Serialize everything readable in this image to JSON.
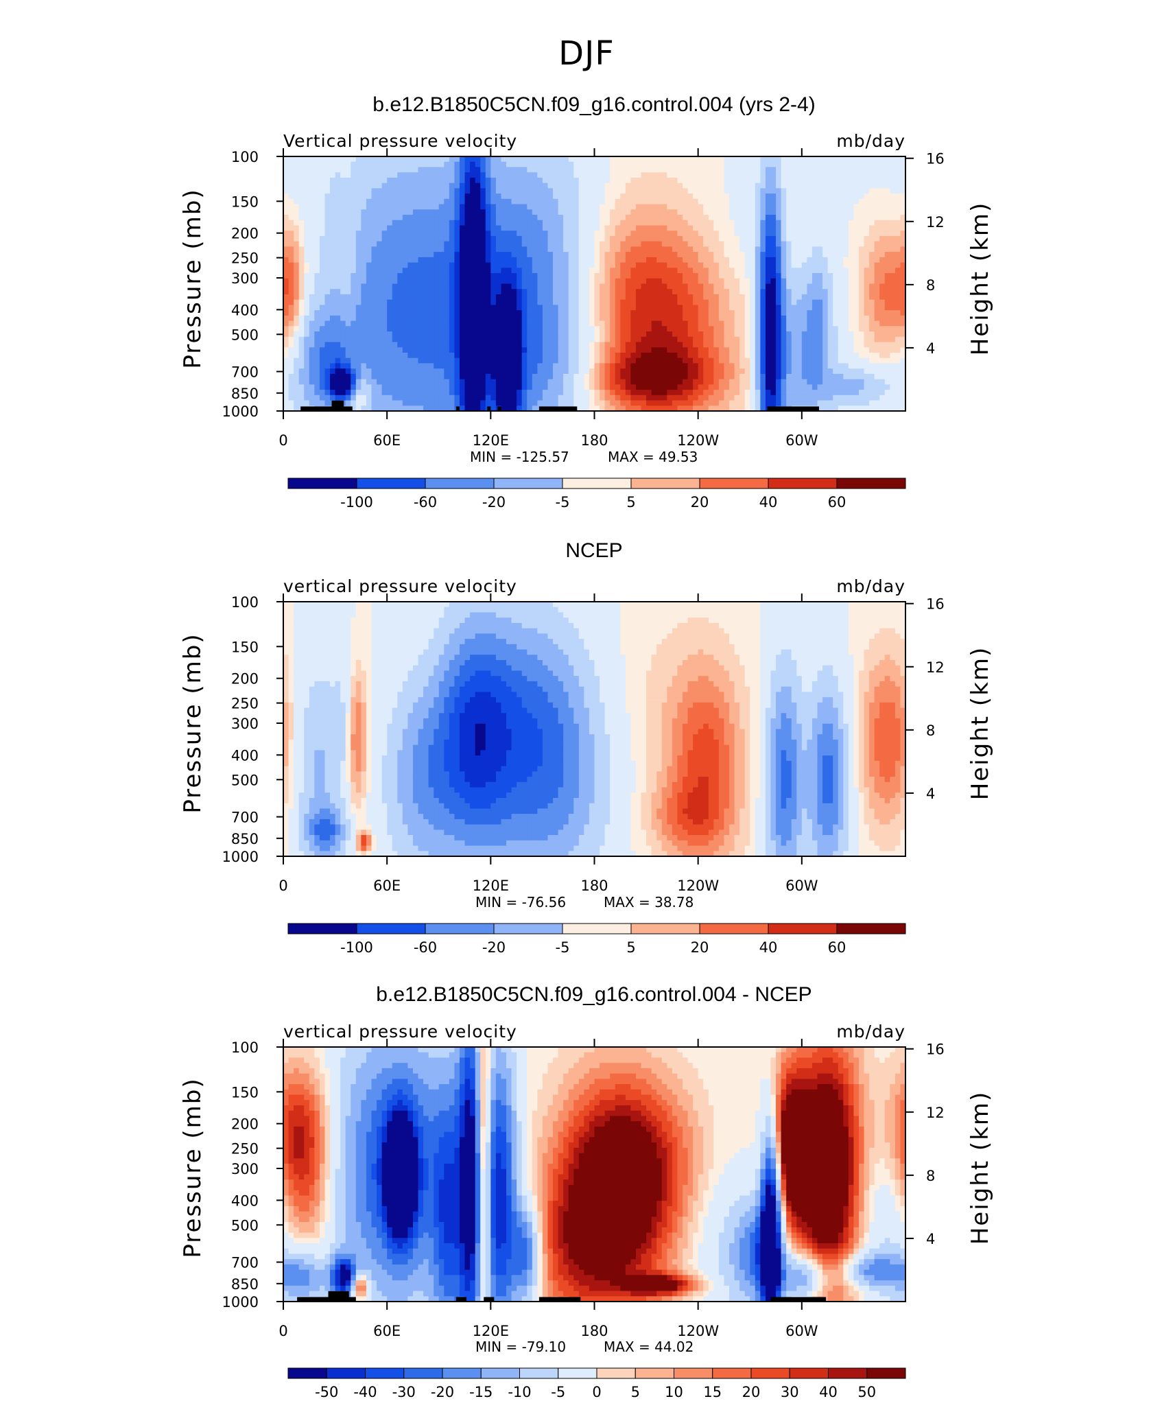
{
  "page": {
    "title": "DJF"
  },
  "colors": {
    "neg": [
      "#08088f",
      "#0a2fd0",
      "#1450e8",
      "#2e6be8",
      "#5b8ff0",
      "#8fb4f7",
      "#bcd6fb",
      "#deecfc"
    ],
    "pos": [
      "#fdeee2",
      "#fcd3bb",
      "#fbb392",
      "#f78e68",
      "#f46a43",
      "#ea4a25",
      "#d12d17",
      "#a81510",
      "#7a0606"
    ],
    "topography": "#000000"
  },
  "chart_data": [
    {
      "type": "heatmap",
      "title": "b.e12.B1850C5CN.f09_g16.control.004 (yrs 2-4)",
      "left_label": "Vertical pressure velocity",
      "right_label": "mb/day",
      "ylabel": "Pressure (mb)",
      "ylabel_right": "Height (km)",
      "x_ticks": [
        "0",
        "60E",
        "120E",
        "180",
        "120W",
        "60W"
      ],
      "x_tick_values": [
        0,
        60,
        120,
        180,
        240,
        300
      ],
      "xlim": [
        0,
        360
      ],
      "y_ticks": [
        "100",
        "150",
        "200",
        "250",
        "300",
        "400",
        "500",
        "700",
        "850",
        "1000"
      ],
      "y_tick_values": [
        100,
        150,
        200,
        250,
        300,
        400,
        500,
        700,
        850,
        1000
      ],
      "ylim": [
        100,
        1000
      ],
      "y_right_ticks": [
        "4",
        "8",
        "12",
        "16"
      ],
      "y_right_tick_values": [
        4,
        8,
        12,
        16
      ],
      "min_text": "MIN = -125.57",
      "max_text": "MAX = 49.53",
      "colorbar_labels": [
        "-100",
        "-60",
        "-20",
        "-5",
        "5",
        "20",
        "40",
        "60"
      ],
      "blobs": [
        {
          "lon": 5,
          "p": 350,
          "lw": 6,
          "pw": 160,
          "v": 25
        },
        {
          "lon": 20,
          "p": 250,
          "lw": 18,
          "pw": 100,
          "v": 8
        },
        {
          "lon": 25,
          "p": 650,
          "lw": 14,
          "pw": 200,
          "v": -35
        },
        {
          "lon": 35,
          "p": 780,
          "lw": 6,
          "pw": 80,
          "v": -100
        },
        {
          "lon": 43,
          "p": 820,
          "lw": 5,
          "pw": 120,
          "v": 50
        },
        {
          "lon": 38,
          "p": 300,
          "lw": 4,
          "pw": 200,
          "v": 10
        },
        {
          "lon": 80,
          "p": 400,
          "lw": 45,
          "pw": 400,
          "v": -60
        },
        {
          "lon": 110,
          "p": 350,
          "lw": 6,
          "pw": 400,
          "v": -100
        },
        {
          "lon": 130,
          "p": 650,
          "lw": 5,
          "pw": 300,
          "v": -120
        },
        {
          "lon": 145,
          "p": 400,
          "lw": 25,
          "pw": 350,
          "v": -40
        },
        {
          "lon": 160,
          "p": 700,
          "lw": 30,
          "pw": 200,
          "v": -12
        },
        {
          "lon": 180,
          "p": 150,
          "lw": 40,
          "pw": 80,
          "v": -8
        },
        {
          "lon": 200,
          "p": 350,
          "lw": 28,
          "pw": 280,
          "v": 32
        },
        {
          "lon": 230,
          "p": 500,
          "lw": 25,
          "pw": 300,
          "v": 22
        },
        {
          "lon": 210,
          "p": 750,
          "lw": 30,
          "pw": 150,
          "v": 30
        },
        {
          "lon": 282,
          "p": 500,
          "lw": 5,
          "pw": 450,
          "v": -110
        },
        {
          "lon": 300,
          "p": 600,
          "lw": 12,
          "pw": 300,
          "v": -40
        },
        {
          "lon": 310,
          "p": 400,
          "lw": 5,
          "pw": 150,
          "v": -25
        },
        {
          "lon": 330,
          "p": 800,
          "lw": 15,
          "pw": 100,
          "v": -30
        },
        {
          "lon": 350,
          "p": 350,
          "lw": 12,
          "pw": 160,
          "v": 32
        },
        {
          "lon": 270,
          "p": 200,
          "lw": 15,
          "pw": 80,
          "v": -5
        }
      ],
      "topography": [
        [
          10,
          40,
          960
        ],
        [
          28,
          35,
          910
        ],
        [
          100,
          102,
          960
        ],
        [
          118,
          120,
          960
        ],
        [
          124,
          126,
          960
        ],
        [
          148,
          170,
          960
        ],
        [
          280,
          310,
          960
        ]
      ]
    },
    {
      "type": "heatmap",
      "title": "NCEP",
      "left_label": "vertical pressure velocity",
      "right_label": "mb/day",
      "ylabel": "Pressure (mb)",
      "ylabel_right": "Height (km)",
      "x_ticks": [
        "0",
        "60E",
        "120E",
        "180",
        "120W",
        "60W"
      ],
      "x_tick_values": [
        0,
        60,
        120,
        180,
        240,
        300
      ],
      "xlim": [
        0,
        360
      ],
      "y_ticks": [
        "100",
        "150",
        "200",
        "250",
        "300",
        "400",
        "500",
        "700",
        "850",
        "1000"
      ],
      "y_tick_values": [
        100,
        150,
        200,
        250,
        300,
        400,
        500,
        700,
        850,
        1000
      ],
      "ylim": [
        100,
        1000
      ],
      "y_right_ticks": [
        "4",
        "8",
        "12",
        "16"
      ],
      "y_right_tick_values": [
        4,
        8,
        12,
        16
      ],
      "min_text": "MIN = -76.56",
      "max_text": "MAX = 38.78",
      "colorbar_labels": [
        "-100",
        "-60",
        "-20",
        "-5",
        "5",
        "20",
        "40",
        "60"
      ],
      "blobs": [
        {
          "lon": 20,
          "p": 450,
          "lw": 10,
          "pw": 300,
          "v": -30
        },
        {
          "lon": 25,
          "p": 800,
          "lw": 8,
          "pw": 120,
          "v": -45
        },
        {
          "lon": 35,
          "p": 300,
          "lw": 4,
          "pw": 150,
          "v": -15
        },
        {
          "lon": 42,
          "p": 350,
          "lw": 5,
          "pw": 160,
          "v": 30
        },
        {
          "lon": 47,
          "p": 880,
          "lw": 3,
          "pw": 60,
          "v": 38
        },
        {
          "lon": 80,
          "p": 500,
          "lw": 15,
          "pw": 300,
          "v": -40
        },
        {
          "lon": 110,
          "p": 350,
          "lw": 15,
          "pw": 250,
          "v": -65
        },
        {
          "lon": 150,
          "p": 450,
          "lw": 25,
          "pw": 350,
          "v": -50
        },
        {
          "lon": 135,
          "p": 250,
          "lw": 25,
          "pw": 150,
          "v": -25
        },
        {
          "lon": 180,
          "p": 600,
          "lw": 40,
          "pw": 300,
          "v": -6
        },
        {
          "lon": 215,
          "p": 400,
          "lw": 30,
          "pw": 350,
          "v": 10
        },
        {
          "lon": 245,
          "p": 450,
          "lw": 15,
          "pw": 300,
          "v": 30
        },
        {
          "lon": 230,
          "p": 700,
          "lw": 15,
          "pw": 150,
          "v": 15
        },
        {
          "lon": 290,
          "p": 500,
          "lw": 7,
          "pw": 350,
          "v": -60
        },
        {
          "lon": 315,
          "p": 500,
          "lw": 8,
          "pw": 300,
          "v": -60
        },
        {
          "lon": 350,
          "p": 350,
          "lw": 12,
          "pw": 200,
          "v": 30
        }
      ],
      "topography": []
    },
    {
      "type": "heatmap",
      "title": "b.e12.B1850C5CN.f09_g16.control.004 - NCEP",
      "left_label": "vertical pressure velocity",
      "right_label": "mb/day",
      "ylabel": "Pressure (mb)",
      "ylabel_right": "Height (km)",
      "x_ticks": [
        "0",
        "60E",
        "120E",
        "180",
        "120W",
        "60W"
      ],
      "x_tick_values": [
        0,
        60,
        120,
        180,
        240,
        300
      ],
      "xlim": [
        0,
        360
      ],
      "y_ticks": [
        "100",
        "150",
        "200",
        "250",
        "300",
        "400",
        "500",
        "700",
        "850",
        "1000"
      ],
      "y_tick_values": [
        100,
        150,
        200,
        250,
        300,
        400,
        500,
        700,
        850,
        1000
      ],
      "ylim": [
        100,
        1000
      ],
      "y_right_ticks": [
        "4",
        "8",
        "12",
        "16"
      ],
      "y_right_tick_values": [
        4,
        8,
        12,
        16
      ],
      "min_text": "MIN = -79.10",
      "max_text": "MAX = 44.02",
      "colorbar_labels": [
        "-50",
        "-40",
        "-30",
        "-20",
        "-15",
        "-10",
        "-5",
        "0",
        "5",
        "10",
        "15",
        "20",
        "30",
        "40",
        "50"
      ],
      "blobs": [
        {
          "lon": 10,
          "p": 230,
          "lw": 14,
          "pw": 110,
          "v": 28
        },
        {
          "lon": 15,
          "p": 450,
          "lw": 12,
          "pw": 150,
          "v": 8
        },
        {
          "lon": 10,
          "p": 800,
          "lw": 10,
          "pw": 120,
          "v": -25
        },
        {
          "lon": 35,
          "p": 800,
          "lw": 5,
          "pw": 100,
          "v": -55
        },
        {
          "lon": 44,
          "p": 870,
          "lw": 4,
          "pw": 80,
          "v": 35
        },
        {
          "lon": 65,
          "p": 300,
          "lw": 25,
          "pw": 250,
          "v": -40
        },
        {
          "lon": 68,
          "p": 320,
          "lw": 6,
          "pw": 120,
          "v": -75
        },
        {
          "lon": 95,
          "p": 500,
          "lw": 6,
          "pw": 400,
          "v": -30
        },
        {
          "lon": 108,
          "p": 350,
          "lw": 5,
          "pw": 400,
          "v": -55
        },
        {
          "lon": 116,
          "p": 300,
          "lw": 3,
          "pw": 300,
          "v": 42
        },
        {
          "lon": 125,
          "p": 400,
          "lw": 7,
          "pw": 350,
          "v": -50
        },
        {
          "lon": 140,
          "p": 650,
          "lw": 6,
          "pw": 200,
          "v": -35
        },
        {
          "lon": 190,
          "p": 400,
          "lw": 25,
          "pw": 300,
          "v": 32
        },
        {
          "lon": 210,
          "p": 280,
          "lw": 25,
          "pw": 150,
          "v": 12
        },
        {
          "lon": 220,
          "p": 860,
          "lw": 15,
          "pw": 60,
          "v": 25
        },
        {
          "lon": 165,
          "p": 650,
          "lw": 18,
          "pw": 300,
          "v": 10
        },
        {
          "lon": 255,
          "p": 600,
          "lw": 15,
          "pw": 300,
          "v": -8
        },
        {
          "lon": 282,
          "p": 550,
          "lw": 4,
          "pw": 350,
          "v": -80
        },
        {
          "lon": 275,
          "p": 650,
          "lw": 10,
          "pw": 200,
          "v": -30
        },
        {
          "lon": 292,
          "p": 250,
          "lw": 8,
          "pw": 130,
          "v": 30
        },
        {
          "lon": 315,
          "p": 300,
          "lw": 14,
          "pw": 250,
          "v": 40
        },
        {
          "lon": 300,
          "p": 800,
          "lw": 10,
          "pw": 120,
          "v": -30
        },
        {
          "lon": 340,
          "p": 750,
          "lw": 12,
          "pw": 80,
          "v": -25
        },
        {
          "lon": 350,
          "p": 500,
          "lw": 12,
          "pw": 300,
          "v": -10
        }
      ],
      "topography": [
        [
          8,
          42,
          960
        ],
        [
          26,
          38,
          910
        ],
        [
          100,
          106,
          960
        ],
        [
          116,
          122,
          960
        ],
        [
          148,
          172,
          960
        ],
        [
          282,
          314,
          960
        ]
      ]
    }
  ]
}
